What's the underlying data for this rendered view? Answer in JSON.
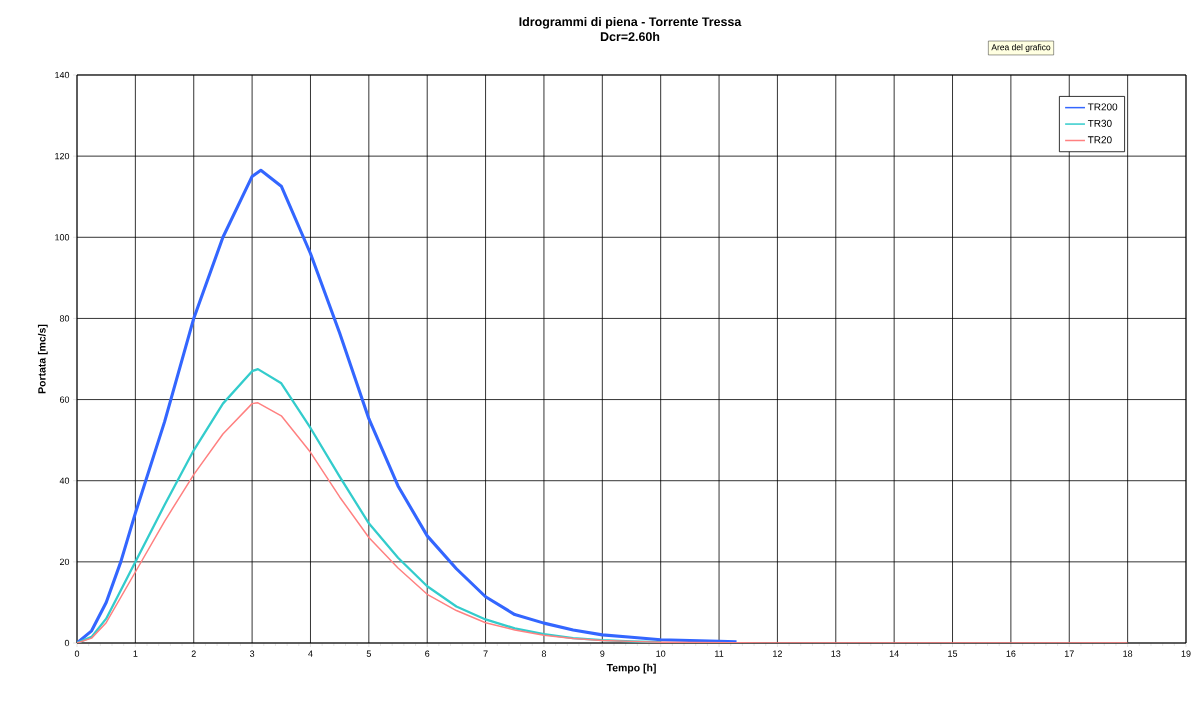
{
  "chart_data": {
    "type": "line",
    "title": "Idrogrammi di piena - Torrente Tressa",
    "subtitle": "Dcr=2.60h",
    "xlabel": "Tempo [h]",
    "ylabel": "Portata [mc/s]",
    "annotations": [
      "Area del grafico"
    ],
    "xlim": [
      0,
      19
    ],
    "xticks": [
      0,
      1,
      2,
      3,
      4,
      5,
      6,
      7,
      8,
      9,
      10,
      11,
      12,
      13,
      14,
      15,
      16,
      17,
      18,
      19
    ],
    "ylim": [
      0,
      140
    ],
    "yticks": [
      0,
      20,
      40,
      60,
      80,
      100,
      120,
      140
    ],
    "grid": true,
    "legend": "top right",
    "marker": "none",
    "line_style": "solid",
    "series": [
      {
        "name": "TR200",
        "color": "#3366ff",
        "x": [
          0,
          0.25,
          0.5,
          0.75,
          1,
          1.5,
          2,
          2.5,
          3,
          3.15,
          3.5,
          4,
          4.5,
          5,
          5.5,
          6,
          6.5,
          7,
          7.5,
          8,
          8.5,
          9,
          9.5,
          10,
          10.5,
          11,
          11.3
        ],
        "values": [
          0,
          3,
          10,
          20,
          32,
          54.5,
          80,
          100,
          115,
          116.5,
          112.6,
          96,
          76.4,
          55.3,
          38.7,
          26.4,
          18.3,
          11.4,
          7,
          4.9,
          3.2,
          2,
          1.4,
          0.8,
          0.6,
          0.4,
          0.3
        ]
      },
      {
        "name": "TR30",
        "color": "#33cccc",
        "x": [
          0,
          0.25,
          0.5,
          1,
          1.5,
          2,
          2.5,
          3,
          3.1,
          3.5,
          4,
          4.5,
          5,
          5.5,
          6,
          6.5,
          7,
          7.5,
          8,
          8.5,
          9,
          9.5,
          10
        ],
        "values": [
          0,
          1.5,
          6,
          20,
          34,
          47.5,
          59,
          67,
          67.5,
          64,
          53,
          41,
          29.5,
          21,
          14,
          9,
          5.8,
          3.6,
          2.2,
          1.2,
          0.7,
          0.4,
          0.2
        ]
      },
      {
        "name": "TR20",
        "color": "#ff8080",
        "x": [
          0,
          0.25,
          0.5,
          1,
          1.5,
          2,
          2.5,
          3,
          3.1,
          3.5,
          4,
          4.5,
          5,
          5.5,
          6,
          6.5,
          7,
          7.5,
          8,
          8.5,
          9,
          9.5,
          10,
          11,
          12,
          13,
          14,
          15,
          16,
          17,
          18
        ],
        "values": [
          0,
          1.2,
          5,
          17.5,
          30,
          41.5,
          51.5,
          59,
          59.2,
          56,
          47,
          36,
          26,
          18.5,
          12,
          8,
          5,
          3.2,
          1.9,
          1.1,
          0.6,
          0.4,
          0.2,
          0.1,
          0,
          0,
          0,
          0,
          0,
          0,
          0
        ]
      }
    ]
  }
}
